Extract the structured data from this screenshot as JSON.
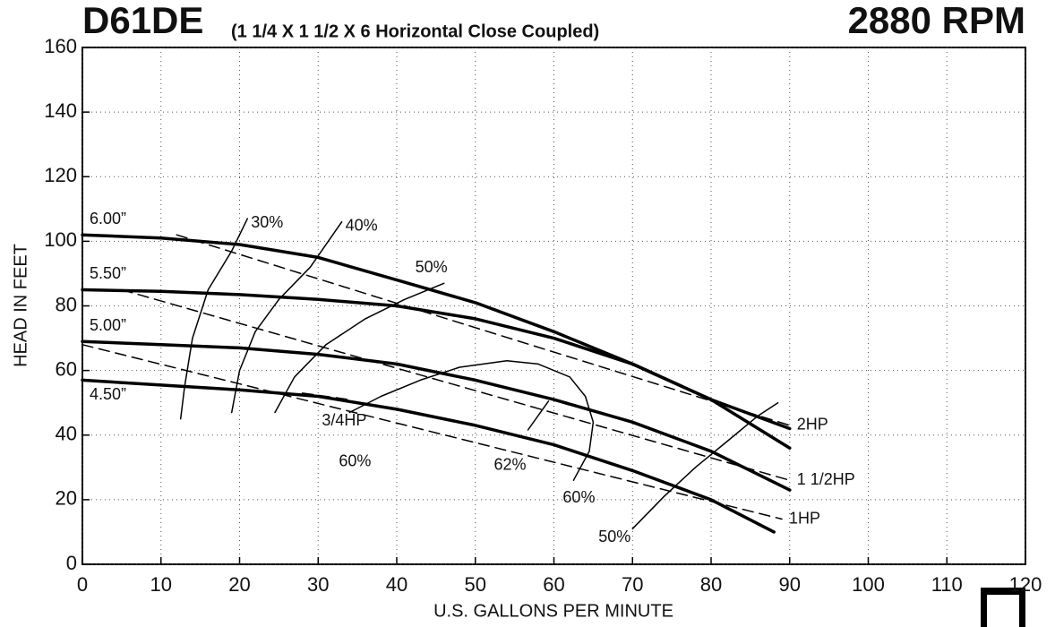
{
  "chart_data": {
    "type": "line",
    "title": "D61DE",
    "subtitle": "(1 1/4 X 1 1/2 X 6 Horizontal Close Coupled)",
    "speed": "2880 RPM",
    "x_label": "U.S. GALLONS PER MINUTE",
    "y_label": "HEAD IN FEET",
    "xlim": [
      0,
      120
    ],
    "ylim": [
      0,
      160
    ],
    "xticks": [
      0,
      10,
      20,
      30,
      40,
      50,
      60,
      70,
      80,
      90,
      100,
      110,
      120
    ],
    "yticks": [
      0,
      20,
      40,
      60,
      80,
      100,
      120,
      140,
      160
    ],
    "grid": true,
    "series": [
      {
        "name": "6.00”",
        "color": "#000",
        "style": "solid",
        "width": 3.5,
        "x": [
          0,
          10,
          20,
          30,
          40,
          50,
          60,
          70,
          80,
          90
        ],
        "values": [
          102,
          101,
          99,
          95,
          88,
          81,
          72,
          62,
          51,
          42
        ]
      },
      {
        "name": "5.50”",
        "color": "#000",
        "style": "solid",
        "width": 3.5,
        "x": [
          0,
          10,
          20,
          30,
          40,
          50,
          60,
          70,
          80,
          90
        ],
        "values": [
          85,
          84.5,
          83.5,
          82,
          80,
          76,
          70,
          62,
          51,
          36
        ]
      },
      {
        "name": "5.00”",
        "color": "#000",
        "style": "solid",
        "width": 3.5,
        "x": [
          0,
          10,
          20,
          30,
          40,
          50,
          60,
          70,
          80,
          90
        ],
        "values": [
          69,
          68,
          67,
          65,
          62,
          57,
          51,
          44,
          35,
          23
        ]
      },
      {
        "name": "4.50”",
        "color": "#000",
        "style": "solid",
        "width": 3.5,
        "x": [
          0,
          10,
          20,
          30,
          40,
          50,
          60,
          70,
          80,
          88
        ],
        "values": [
          57,
          55.5,
          54,
          52,
          48,
          43,
          37,
          29,
          20,
          10
        ]
      },
      {
        "name": "2HP",
        "color": "#000",
        "style": "dashed",
        "width": 1.5,
        "x": [
          12,
          90
        ],
        "values": [
          102,
          43
        ]
      },
      {
        "name": "1 1/2HP",
        "color": "#000",
        "style": "dashed",
        "width": 1.5,
        "x": [
          5,
          90
        ],
        "values": [
          85,
          26
        ]
      },
      {
        "name": "1HP",
        "color": "#000",
        "style": "dashed",
        "width": 1.5,
        "x": [
          0,
          89
        ],
        "values": [
          68,
          14
        ]
      },
      {
        "name": "3/4HP",
        "color": "#000",
        "style": "dashed",
        "width": 1.5,
        "x": [
          28,
          34
        ],
        "values": [
          53,
          51
        ]
      },
      {
        "name": "30%",
        "color": "#000",
        "style": "solid",
        "width": 1.5,
        "x": [
          12.5,
          13,
          14,
          16,
          19,
          21
        ],
        "values": [
          45,
          55,
          70,
          85,
          97,
          107
        ]
      },
      {
        "name": "40%",
        "color": "#000",
        "style": "solid",
        "width": 1.5,
        "x": [
          19,
          20,
          22,
          25,
          29,
          33
        ],
        "values": [
          47,
          60,
          72,
          82,
          92,
          106
        ]
      },
      {
        "name": "50%",
        "color": "#000",
        "style": "solid",
        "width": 1.5,
        "x": [
          24.5,
          27,
          31,
          36,
          41,
          46
        ],
        "values": [
          47,
          58,
          68,
          76,
          82,
          87
        ]
      },
      {
        "name": "60%",
        "color": "#000",
        "style": "solid",
        "width": 1.5,
        "x": [
          34,
          38,
          43,
          48,
          54,
          58,
          62,
          64,
          65,
          64.5,
          62.5
        ],
        "values": [
          47,
          52,
          57,
          61,
          63,
          62,
          58,
          52,
          44,
          35,
          26
        ]
      },
      {
        "name": "62%",
        "color": "#000",
        "style": "solid",
        "width": 1.5,
        "x": [
          56.7,
          59.3
        ],
        "values": [
          41.6,
          50.5
        ]
      },
      {
        "name": "50%",
        "color": "#000",
        "style": "solid",
        "width": 1.5,
        "x": [
          70,
          74,
          78,
          82,
          86,
          88.5
        ],
        "values": [
          11,
          21,
          30,
          38,
          46,
          50
        ]
      }
    ]
  }
}
